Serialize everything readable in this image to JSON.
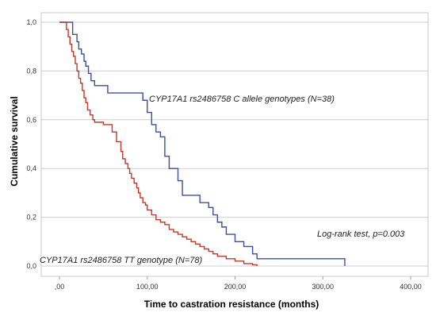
{
  "chart_data": {
    "type": "line",
    "title": "",
    "xlabel": "Time to castration resistance (months)",
    "ylabel": "Cumulative survival",
    "xlim": [
      0,
      400
    ],
    "ylim": [
      0,
      1
    ],
    "x_ticks": [
      ",00",
      "100,00",
      "200,00",
      "300,00",
      "400,00"
    ],
    "y_ticks": [
      "0,0",
      "0,2",
      "0,4",
      "0,6",
      "0,8",
      "1,0"
    ],
    "grid": "horizontal",
    "step": true,
    "series": [
      {
        "name": "CYP17A1 rs2486758 C allele genotypes (N=38)",
        "color": "#3b4fa0",
        "x": [
          0,
          15,
          20,
          22,
          25,
          28,
          30,
          33,
          36,
          40,
          45,
          55,
          60,
          70,
          80,
          90,
          95,
          100,
          105,
          110,
          115,
          120,
          125,
          130,
          135,
          140,
          150,
          160,
          170,
          175,
          180,
          185,
          190,
          200,
          210,
          220,
          225,
          230,
          325
        ],
        "y": [
          1.0,
          0.95,
          0.92,
          0.89,
          0.87,
          0.84,
          0.82,
          0.79,
          0.76,
          0.74,
          0.74,
          0.71,
          0.71,
          0.71,
          0.71,
          0.71,
          0.68,
          0.63,
          0.58,
          0.55,
          0.53,
          0.45,
          0.4,
          0.4,
          0.35,
          0.29,
          0.29,
          0.26,
          0.24,
          0.21,
          0.18,
          0.16,
          0.13,
          0.1,
          0.08,
          0.05,
          0.03,
          0.03,
          0.0
        ]
      },
      {
        "name": "CYP17A1 rs2486758 TT genotype (N=78)",
        "color": "#c0392b",
        "x": [
          0,
          8,
          10,
          12,
          14,
          16,
          18,
          20,
          22,
          24,
          26,
          28,
          30,
          32,
          35,
          38,
          40,
          42,
          45,
          50,
          60,
          65,
          70,
          72,
          75,
          78,
          80,
          82,
          85,
          88,
          90,
          92,
          95,
          98,
          100,
          105,
          110,
          115,
          120,
          125,
          130,
          135,
          140,
          145,
          150,
          155,
          160,
          165,
          170,
          175,
          180,
          185,
          190,
          195,
          200,
          210,
          220,
          225
        ],
        "y": [
          1.0,
          0.97,
          0.94,
          0.91,
          0.88,
          0.86,
          0.83,
          0.8,
          0.77,
          0.75,
          0.72,
          0.69,
          0.67,
          0.64,
          0.62,
          0.6,
          0.59,
          0.59,
          0.59,
          0.58,
          0.55,
          0.51,
          0.47,
          0.44,
          0.42,
          0.4,
          0.38,
          0.36,
          0.34,
          0.32,
          0.3,
          0.28,
          0.26,
          0.25,
          0.23,
          0.21,
          0.19,
          0.18,
          0.17,
          0.15,
          0.14,
          0.13,
          0.12,
          0.11,
          0.1,
          0.09,
          0.08,
          0.07,
          0.06,
          0.05,
          0.04,
          0.04,
          0.03,
          0.03,
          0.02,
          0.01,
          0.005,
          0.0
        ]
      }
    ],
    "annotations": {
      "series_c_label": "CYP17A1 rs2486758 C allele genotypes (N=38)",
      "series_tt_label": "CYP17A1 rs2486758 TT genotype (N=78)",
      "logrank": "Log-rank test, p=0.003"
    }
  }
}
